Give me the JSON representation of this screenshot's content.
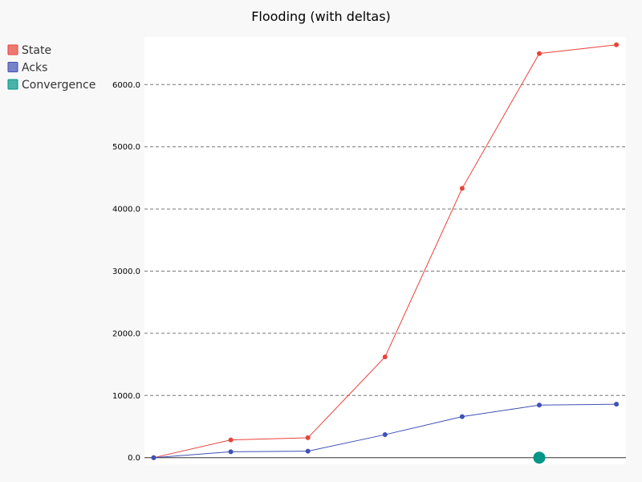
{
  "chart_data": {
    "type": "line",
    "title": "Flooding (with deltas)",
    "xlabel": "",
    "ylabel": "",
    "x": [
      0,
      1,
      2,
      3,
      4,
      5,
      6
    ],
    "ylim": [
      0,
      6500
    ],
    "yticks": [
      0,
      1000,
      2000,
      3000,
      4000,
      5000,
      6000
    ],
    "ytick_labels": [
      "0.0",
      "1000.0",
      "2000.0",
      "3000.0",
      "4000.0",
      "5000.0",
      "6000.0"
    ],
    "grid": "horizontal dashed",
    "legend_position": "top-left",
    "series": [
      {
        "name": "State",
        "color": "#e8433a",
        "values": [
          0,
          285,
          320,
          1620,
          4330,
          6500,
          6640
        ]
      },
      {
        "name": "Acks",
        "color": "#3f51b5",
        "values": [
          0,
          95,
          105,
          370,
          660,
          845,
          860
        ]
      }
    ],
    "markers": [
      {
        "name": "Convergence",
        "color": "#009688",
        "x": 5,
        "y": 0
      }
    ]
  },
  "legend": [
    {
      "name": "State",
      "color": "#e8433a"
    },
    {
      "name": "Acks",
      "color": "#3f51b5"
    },
    {
      "name": "Convergence",
      "color": "#009688"
    }
  ]
}
